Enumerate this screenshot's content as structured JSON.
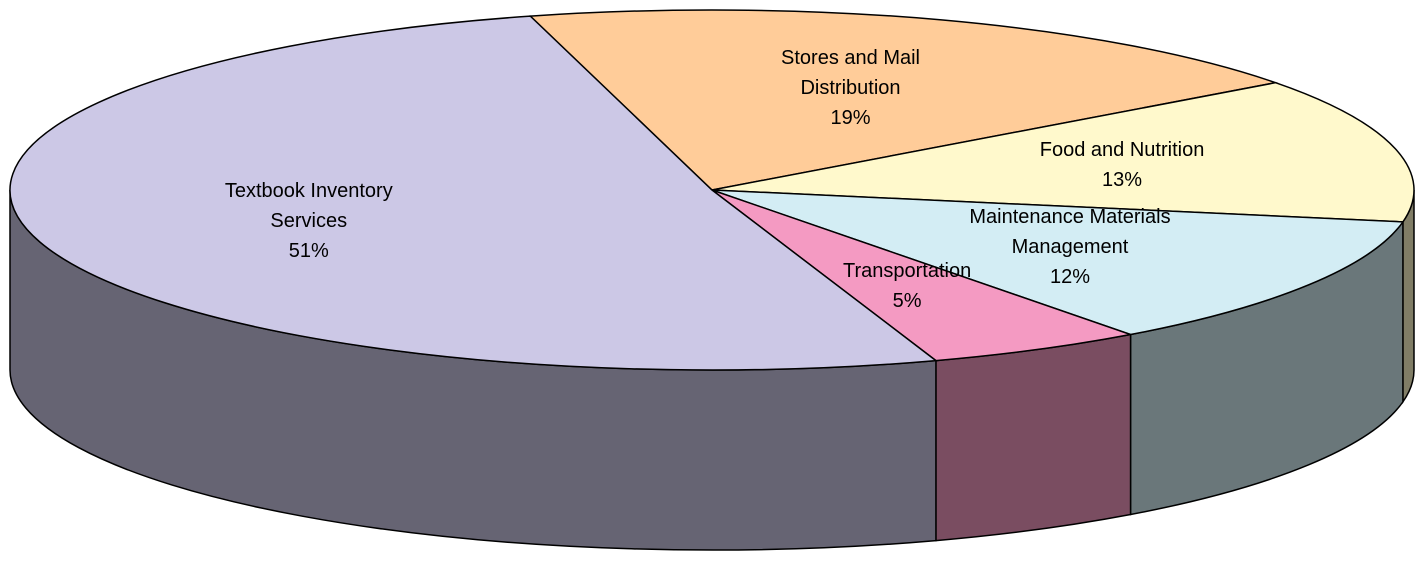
{
  "chart_data": {
    "type": "pie",
    "categories": [
      "Stores and Mail Distribution",
      "Food and Nutrition",
      "Maintenance Materials Management",
      "Transportation",
      "Textbook Inventory Services"
    ],
    "values": [
      19,
      13,
      12,
      5,
      51
    ],
    "value_labels": [
      "19%",
      "13%",
      "12%",
      "5%",
      "51%"
    ],
    "colors": [
      "#FFCC99",
      "#FFF9CC",
      "#D3EDF4",
      "#F49AC2",
      "#CCC8E6"
    ]
  }
}
